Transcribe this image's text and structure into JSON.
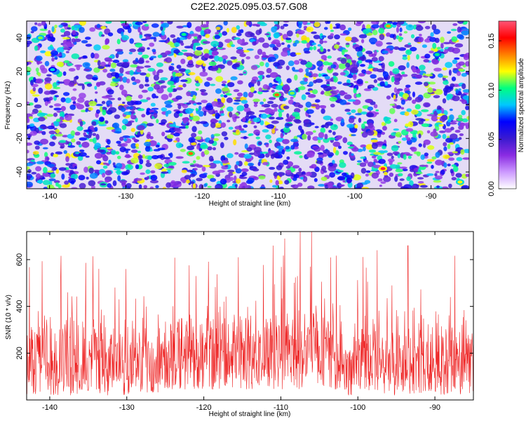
{
  "page_title": "C2E2.2025.095.03.57.G08",
  "colors": {
    "line": "#ee2222",
    "spectrogram_background": "#e4dcf6",
    "colormap": [
      "#ffffff",
      "#cc99ff",
      "#8a2be2",
      "#3a1ad0",
      "#0000ff",
      "#00c8ff",
      "#00ff80",
      "#ffff00",
      "#ff8000",
      "#ff0000",
      "#ff5577"
    ]
  },
  "chart_data": [
    {
      "type": "heatmap",
      "title": "C2E2.2025.095.03.57.G08",
      "xlabel": "Height of straight line (km)",
      "ylabel": "Frequency (Hz)",
      "xlim": [
        -143,
        -85
      ],
      "ylim": [
        -50,
        50
      ],
      "x_ticks": [
        -140,
        -130,
        -120,
        -110,
        -100,
        -90
      ],
      "y_ticks": [
        -40,
        -20,
        0,
        20,
        40
      ],
      "colorbar": {
        "label": "Normalized spectral amplitude",
        "range": [
          0,
          0.17
        ],
        "ticks": [
          "0.00",
          "0.05",
          "0.10",
          "0.15"
        ],
        "tick_values": [
          0,
          0.05,
          0.1,
          0.15
        ]
      },
      "notable_peaks": [
        {
          "x": -96.3,
          "y": -38,
          "amplitude": 0.16
        },
        {
          "x": -121.5,
          "y": -29,
          "amplitude": 0.14
        },
        {
          "x": -110.2,
          "y": 6,
          "amplitude": 0.14
        },
        {
          "x": -95.6,
          "y": 47,
          "amplitude": 0.13
        },
        {
          "x": -86.2,
          "y": -46,
          "amplitude": 0.12
        },
        {
          "x": -141.2,
          "y": 40,
          "amplitude": 0.11
        },
        {
          "x": -108.2,
          "y": 7,
          "amplitude": 0.11
        },
        {
          "x": -122.4,
          "y": 42,
          "amplitude": 0.1
        },
        {
          "x": -89.2,
          "y": 30,
          "amplitude": 0.1
        },
        {
          "x": -139.6,
          "y": 21,
          "amplitude": 0.09
        }
      ]
    },
    {
      "type": "line",
      "xlabel": "Height of straight line (km)",
      "ylabel": "SNR (10 * v/v)",
      "xlim": [
        -143,
        -85
      ],
      "ylim": [
        0,
        720
      ],
      "x_ticks": [
        -140,
        -130,
        -120,
        -110,
        -100,
        -90
      ],
      "y_ticks": [
        200,
        400,
        600
      ],
      "series": [
        {
          "baseline": 200,
          "noise_range": [
            20,
            420
          ],
          "peaks": [
            {
              "x": -141.5,
              "y": 380
            },
            {
              "x": -131.0,
              "y": 430
            },
            {
              "x": -121.0,
              "y": 530
            },
            {
              "x": -115.5,
              "y": 610
            },
            {
              "x": -111.0,
              "y": 660
            },
            {
              "x": -109.5,
              "y": 690
            },
            {
              "x": -107.5,
              "y": 720
            },
            {
              "x": -106.0,
              "y": 720
            },
            {
              "x": -103.5,
              "y": 650
            },
            {
              "x": -97.5,
              "y": 640
            },
            {
              "x": -93.5,
              "y": 660
            },
            {
              "x": -88.0,
              "y": 440
            }
          ],
          "dip": {
            "x": -101.3,
            "y": 180
          }
        }
      ]
    }
  ]
}
